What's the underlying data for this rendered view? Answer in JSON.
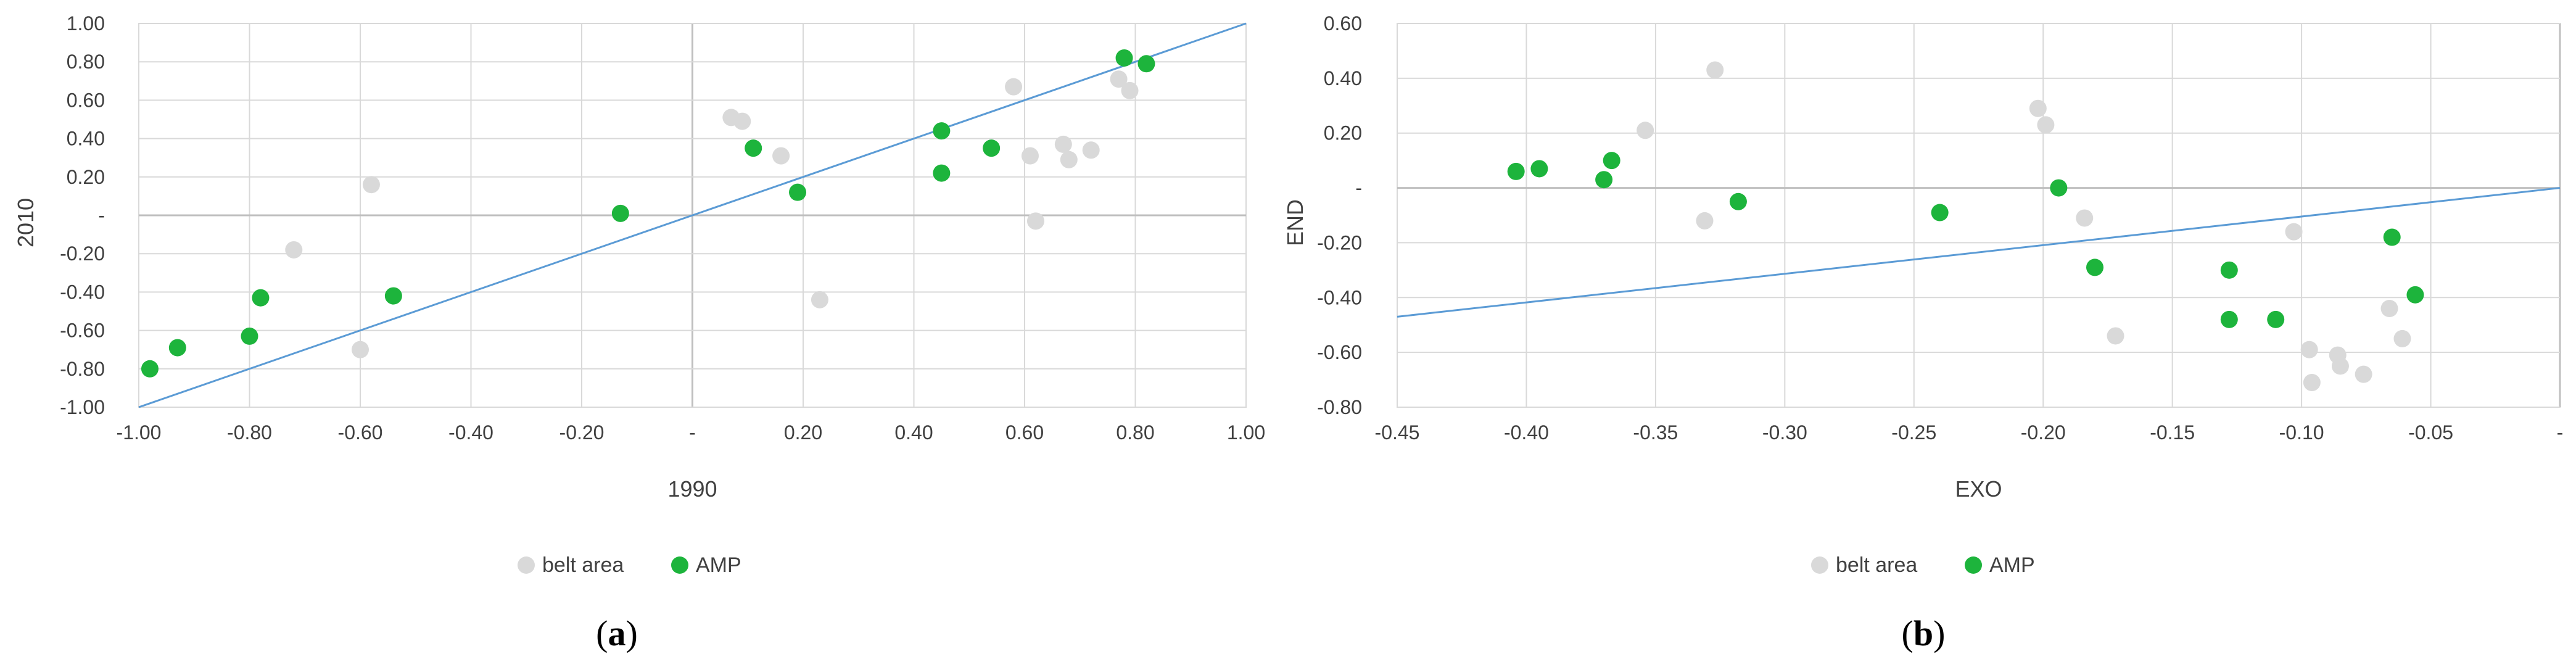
{
  "chart_data": [
    {
      "type": "scatter",
      "panel_label_prefix": "(",
      "panel_label_letter": "a",
      "panel_label_suffix": ")",
      "xlabel": "1990",
      "ylabel": "2010",
      "xlim": [
        -1,
        1
      ],
      "ylim": [
        -1,
        1
      ],
      "x_ticks": [
        -1,
        -0.8,
        -0.6,
        -0.4,
        -0.2,
        0,
        0.2,
        0.4,
        0.6,
        0.8,
        1
      ],
      "x_tick_labels": [
        "-1.00",
        "-0.80",
        "-0.60",
        "-0.40",
        "-0.20",
        "-",
        "0.20",
        "0.40",
        "0.60",
        "0.80",
        "1.00"
      ],
      "y_ticks": [
        -1,
        -0.8,
        -0.6,
        -0.4,
        -0.2,
        0,
        0.2,
        0.4,
        0.6,
        0.8,
        1
      ],
      "y_tick_labels": [
        "-1.00",
        "-0.80",
        "-0.60",
        "-0.40",
        "-0.20",
        "-",
        "0.20",
        "0.40",
        "0.60",
        "0.80",
        "1.00"
      ],
      "grid": true,
      "legend_position": "bottom",
      "trend_line": {
        "from": [
          -1,
          -1
        ],
        "to": [
          1,
          1
        ]
      },
      "series": [
        {
          "name": "belt area",
          "color": "#d9d9d9",
          "points": [
            [
              -0.72,
              -0.18
            ],
            [
              -0.58,
              0.16
            ],
            [
              -0.6,
              -0.7
            ],
            [
              0.07,
              0.51
            ],
            [
              0.09,
              0.49
            ],
            [
              0.16,
              0.31
            ],
            [
              0.23,
              -0.44
            ],
            [
              0.58,
              0.67
            ],
            [
              0.61,
              0.31
            ],
            [
              0.62,
              -0.03
            ],
            [
              0.67,
              0.37
            ],
            [
              0.68,
              0.29
            ],
            [
              0.72,
              0.34
            ],
            [
              0.77,
              0.71
            ],
            [
              0.79,
              0.65
            ]
          ]
        },
        {
          "name": "AMP",
          "color": "#1db43c",
          "points": [
            [
              -0.98,
              -0.8
            ],
            [
              -0.93,
              -0.69
            ],
            [
              -0.8,
              -0.63
            ],
            [
              -0.78,
              -0.43
            ],
            [
              -0.54,
              -0.42
            ],
            [
              -0.13,
              0.01
            ],
            [
              0.11,
              0.35
            ],
            [
              0.19,
              0.12
            ],
            [
              0.45,
              0.44
            ],
            [
              0.45,
              0.22
            ],
            [
              0.54,
              0.35
            ],
            [
              0.78,
              0.82
            ],
            [
              0.82,
              0.79
            ]
          ]
        }
      ]
    },
    {
      "type": "scatter",
      "panel_label_prefix": "(",
      "panel_label_letter": "b",
      "panel_label_suffix": ")",
      "xlabel": "EXO",
      "ylabel": "END",
      "xlim": [
        -0.45,
        0
      ],
      "ylim": [
        -0.8,
        0.6
      ],
      "x_ticks": [
        -0.45,
        -0.4,
        -0.35,
        -0.3,
        -0.25,
        -0.2,
        -0.15,
        -0.1,
        -0.05,
        0
      ],
      "x_tick_labels": [
        "-0.45",
        "-0.40",
        "-0.35",
        "-0.30",
        "-0.25",
        "-0.20",
        "-0.15",
        "-0.10",
        "-0.05",
        "-"
      ],
      "y_ticks": [
        -0.8,
        -0.6,
        -0.4,
        -0.2,
        0,
        0.2,
        0.4,
        0.6
      ],
      "y_tick_labels": [
        "-0.80",
        "-0.60",
        "-0.40",
        "-0.20",
        "-",
        "0.20",
        "0.40",
        "0.60"
      ],
      "grid": true,
      "legend_position": "bottom",
      "trend_line": {
        "from": [
          -0.45,
          -0.47
        ],
        "to": [
          0,
          0
        ]
      },
      "series": [
        {
          "name": "belt area",
          "color": "#d9d9d9",
          "points": [
            [
              -0.354,
              0.21
            ],
            [
              -0.331,
              -0.12
            ],
            [
              -0.327,
              0.43
            ],
            [
              -0.202,
              0.29
            ],
            [
              -0.199,
              0.23
            ],
            [
              -0.184,
              -0.11
            ],
            [
              -0.172,
              -0.54
            ],
            [
              -0.103,
              -0.16
            ],
            [
              -0.097,
              -0.59
            ],
            [
              -0.096,
              -0.71
            ],
            [
              -0.086,
              -0.61
            ],
            [
              -0.085,
              -0.65
            ],
            [
              -0.076,
              -0.68
            ],
            [
              -0.066,
              -0.44
            ],
            [
              -0.061,
              -0.55
            ]
          ]
        },
        {
          "name": "AMP",
          "color": "#1db43c",
          "points": [
            [
              -0.404,
              0.06
            ],
            [
              -0.395,
              0.07
            ],
            [
              -0.37,
              0.03
            ],
            [
              -0.367,
              0.1
            ],
            [
              -0.318,
              -0.05
            ],
            [
              -0.24,
              -0.09
            ],
            [
              -0.194,
              0.0
            ],
            [
              -0.18,
              -0.29
            ],
            [
              -0.128,
              -0.3
            ],
            [
              -0.128,
              -0.48
            ],
            [
              -0.11,
              -0.48
            ],
            [
              -0.065,
              -0.18
            ],
            [
              -0.056,
              -0.39
            ]
          ]
        }
      ]
    }
  ]
}
